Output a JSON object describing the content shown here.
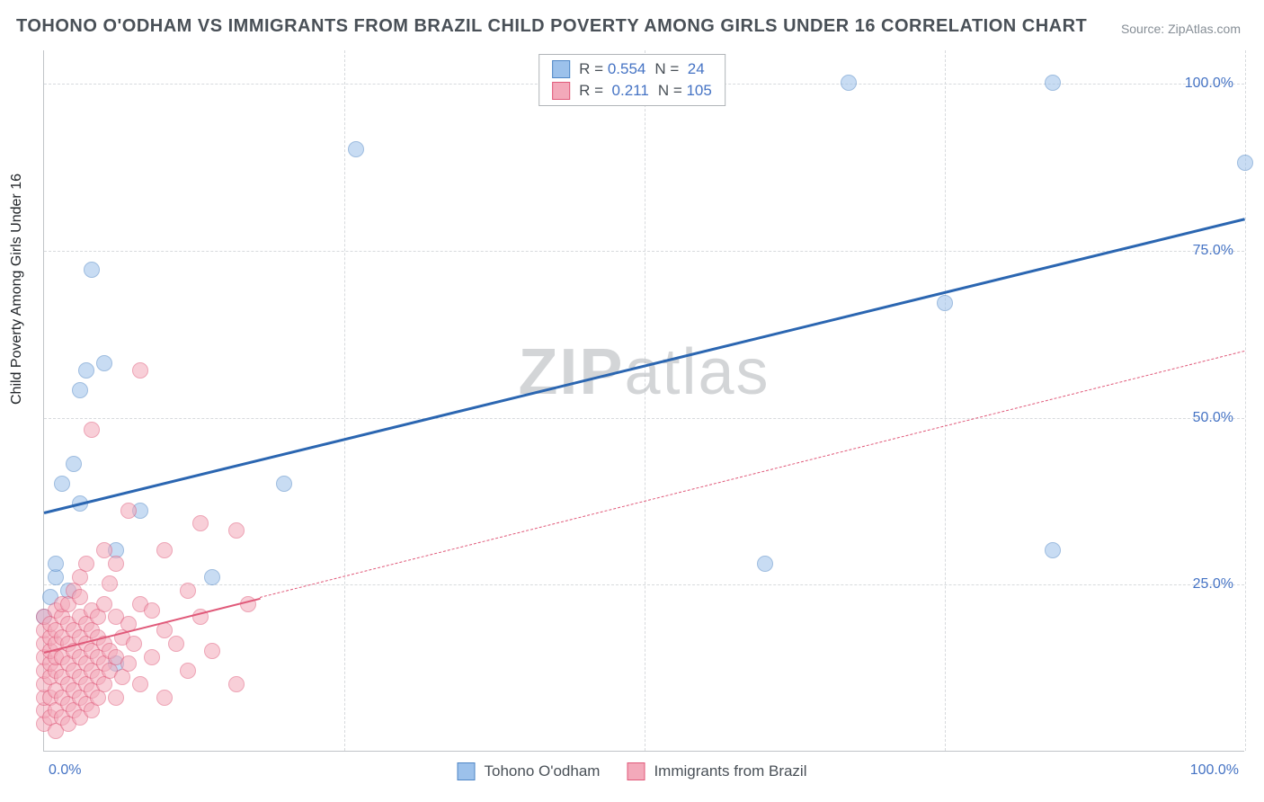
{
  "title": "TOHONO O'ODHAM VS IMMIGRANTS FROM BRAZIL CHILD POVERTY AMONG GIRLS UNDER 16 CORRELATION CHART",
  "source": "Source: ZipAtlas.com",
  "ylabel": "Child Poverty Among Girls Under 16",
  "watermark": {
    "bold": "ZIP",
    "rest": "atlas"
  },
  "chart": {
    "type": "scatter",
    "xlim": [
      0,
      100
    ],
    "ylim": [
      0,
      105
    ],
    "xtick_labels": {
      "min": "0.0%",
      "max": "100.0%"
    },
    "ytick_labels": [
      "25.0%",
      "50.0%",
      "75.0%",
      "100.0%"
    ],
    "ytick_values": [
      25,
      50,
      75,
      100
    ],
    "xgrid_values": [
      25,
      50,
      75,
      100
    ],
    "background_color": "#ffffff",
    "grid_color": "#d7dadd",
    "axis_color": "#c0c4c8",
    "tick_font_color": "#4573c4",
    "title_color": "#495057",
    "marker_radius": 9,
    "marker_border_width": 1,
    "series": [
      {
        "name": "Tohono O'odham",
        "key": "tohono",
        "fill": "#9cc1eb",
        "stroke": "#4f86c6",
        "fill_opacity": 0.55,
        "r": "0.554",
        "n": "24",
        "trend": {
          "x1": 0,
          "y1": 36,
          "x2": 100,
          "y2": 80,
          "color": "#2b66b1",
          "width": 3,
          "dash": "solid"
        },
        "points": [
          [
            0,
            20
          ],
          [
            0.5,
            23
          ],
          [
            1,
            26
          ],
          [
            1,
            28
          ],
          [
            1.5,
            40
          ],
          [
            2,
            24
          ],
          [
            2.5,
            43
          ],
          [
            3,
            37
          ],
          [
            3,
            54
          ],
          [
            3.5,
            57
          ],
          [
            4,
            72
          ],
          [
            5,
            58
          ],
          [
            6,
            13
          ],
          [
            6,
            30
          ],
          [
            8,
            36
          ],
          [
            14,
            26
          ],
          [
            20,
            40
          ],
          [
            26,
            90
          ],
          [
            60,
            28
          ],
          [
            67,
            100
          ],
          [
            75,
            67
          ],
          [
            84,
            100
          ],
          [
            84,
            30
          ],
          [
            100,
            88
          ]
        ]
      },
      {
        "name": "Immigrants from Brazil",
        "key": "brazil",
        "fill": "#f3a9ba",
        "stroke": "#e05a7a",
        "fill_opacity": 0.55,
        "r": "0.211",
        "n": "105",
        "trend": {
          "x1": 0,
          "y1": 15,
          "x2": 100,
          "y2": 60,
          "color": "#e05a7a",
          "width": 2,
          "dash": "dashed",
          "solid_until_x": 18
        },
        "points": [
          [
            0,
            4
          ],
          [
            0,
            6
          ],
          [
            0,
            8
          ],
          [
            0,
            10
          ],
          [
            0,
            12
          ],
          [
            0,
            14
          ],
          [
            0,
            16
          ],
          [
            0,
            18
          ],
          [
            0,
            20
          ],
          [
            0.5,
            5
          ],
          [
            0.5,
            8
          ],
          [
            0.5,
            11
          ],
          [
            0.5,
            13
          ],
          [
            0.5,
            15
          ],
          [
            0.5,
            17
          ],
          [
            0.5,
            19
          ],
          [
            1,
            3
          ],
          [
            1,
            6
          ],
          [
            1,
            9
          ],
          [
            1,
            12
          ],
          [
            1,
            14
          ],
          [
            1,
            16
          ],
          [
            1,
            18
          ],
          [
            1,
            21
          ],
          [
            1.5,
            5
          ],
          [
            1.5,
            8
          ],
          [
            1.5,
            11
          ],
          [
            1.5,
            14
          ],
          [
            1.5,
            17
          ],
          [
            1.5,
            20
          ],
          [
            1.5,
            22
          ],
          [
            2,
            4
          ],
          [
            2,
            7
          ],
          [
            2,
            10
          ],
          [
            2,
            13
          ],
          [
            2,
            16
          ],
          [
            2,
            19
          ],
          [
            2,
            22
          ],
          [
            2.5,
            6
          ],
          [
            2.5,
            9
          ],
          [
            2.5,
            12
          ],
          [
            2.5,
            15
          ],
          [
            2.5,
            18
          ],
          [
            2.5,
            24
          ],
          [
            3,
            5
          ],
          [
            3,
            8
          ],
          [
            3,
            11
          ],
          [
            3,
            14
          ],
          [
            3,
            17
          ],
          [
            3,
            20
          ],
          [
            3,
            23
          ],
          [
            3,
            26
          ],
          [
            3.5,
            7
          ],
          [
            3.5,
            10
          ],
          [
            3.5,
            13
          ],
          [
            3.5,
            16
          ],
          [
            3.5,
            19
          ],
          [
            3.5,
            28
          ],
          [
            4,
            6
          ],
          [
            4,
            9
          ],
          [
            4,
            12
          ],
          [
            4,
            15
          ],
          [
            4,
            18
          ],
          [
            4,
            21
          ],
          [
            4,
            48
          ],
          [
            4.5,
            8
          ],
          [
            4.5,
            11
          ],
          [
            4.5,
            14
          ],
          [
            4.5,
            17
          ],
          [
            4.5,
            20
          ],
          [
            5,
            10
          ],
          [
            5,
            13
          ],
          [
            5,
            16
          ],
          [
            5,
            22
          ],
          [
            5,
            30
          ],
          [
            5.5,
            12
          ],
          [
            5.5,
            15
          ],
          [
            5.5,
            25
          ],
          [
            6,
            8
          ],
          [
            6,
            14
          ],
          [
            6,
            20
          ],
          [
            6,
            28
          ],
          [
            6.5,
            11
          ],
          [
            6.5,
            17
          ],
          [
            7,
            13
          ],
          [
            7,
            19
          ],
          [
            7,
            36
          ],
          [
            7.5,
            16
          ],
          [
            8,
            10
          ],
          [
            8,
            22
          ],
          [
            8,
            57
          ],
          [
            9,
            14
          ],
          [
            9,
            21
          ],
          [
            10,
            8
          ],
          [
            10,
            18
          ],
          [
            10,
            30
          ],
          [
            11,
            16
          ],
          [
            12,
            12
          ],
          [
            12,
            24
          ],
          [
            13,
            34
          ],
          [
            13,
            20
          ],
          [
            14,
            15
          ],
          [
            16,
            33
          ],
          [
            16,
            10
          ],
          [
            17,
            22
          ]
        ]
      }
    ]
  },
  "legend_bottom": [
    {
      "label": "Tohono O'odham",
      "fill": "#9cc1eb",
      "stroke": "#4f86c6"
    },
    {
      "label": "Immigrants from Brazil",
      "fill": "#f3a9ba",
      "stroke": "#e05a7a"
    }
  ]
}
